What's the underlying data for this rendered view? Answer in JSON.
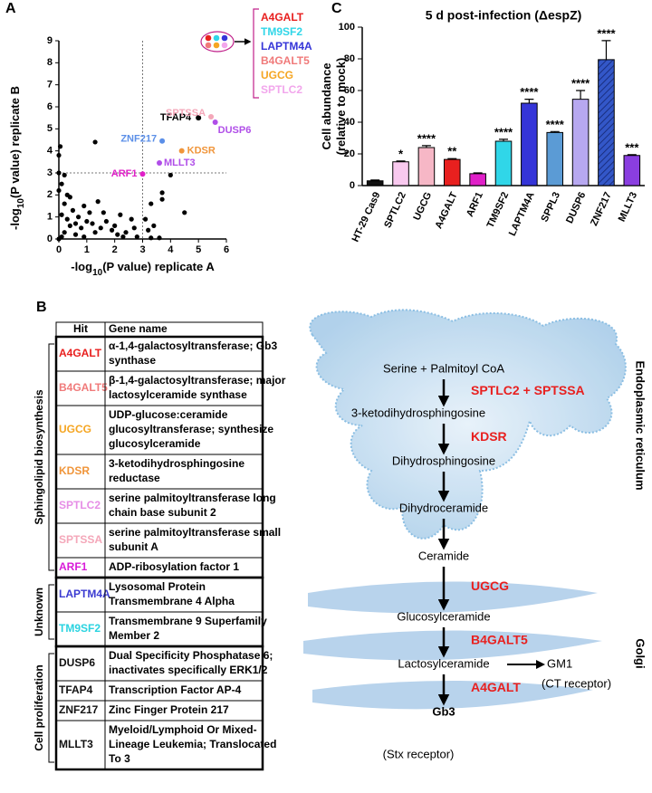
{
  "panel_labels": [
    "A",
    "B",
    "C"
  ],
  "chart_data": [
    {
      "type": "scatter",
      "x_label_parts": [
        "-log",
        "10",
        "(P value) replicate A"
      ],
      "y_label_parts": [
        "-log",
        "10",
        "(P value) replicate B"
      ],
      "xlim": [
        0,
        6
      ],
      "ylim": [
        0,
        9
      ],
      "xticks": [
        0,
        1,
        2,
        3,
        4,
        5,
        6
      ],
      "yticks": [
        0,
        1,
        2,
        3,
        4,
        5,
        6,
        7,
        8,
        9
      ],
      "thresholds": {
        "x": 3,
        "y": 3
      },
      "series": [
        {
          "color": "#000000",
          "x": [
            0.05,
            1.3,
            0,
            0,
            0.1,
            0.3,
            0.2,
            0.5,
            0.1,
            0.7,
            1,
            1.2,
            0.4,
            0.8,
            1.5,
            1.9,
            2.1,
            2.4,
            2.6,
            2.3,
            1.3,
            0.2,
            0.6,
            0.1,
            0,
            0.9,
            1.7,
            1.6,
            2.2,
            1.4,
            0.9,
            2.8,
            3.2,
            3.6,
            3.3,
            3.1,
            3.3,
            3.7,
            3.7,
            4,
            4.5,
            3.4,
            0.3,
            0.6,
            1.1,
            2.7,
            2,
            0.4,
            0.2,
            0
          ],
          "values": [
            4.2,
            4.4,
            3.8,
            3,
            2.5,
            2,
            1.6,
            1.3,
            1.1,
            1,
            0.8,
            0.7,
            0.6,
            0.5,
            0.5,
            0.4,
            0.2,
            0.3,
            0.9,
            0.1,
            0.3,
            0.3,
            0.2,
            0.1,
            0,
            0.1,
            0.8,
            1.2,
            1.1,
            1.7,
            1.5,
            0.1,
            0.4,
            0.05,
            0.05,
            0.9,
            1.6,
            2.1,
            1.8,
            2.9,
            1.2,
            0.6,
            0.9,
            0.7,
            1.2,
            0.5,
            0.6,
            1.9,
            2.9,
            2.2
          ]
        }
      ],
      "labeled_points": [
        {
          "label": "ZNF217",
          "x": 3.7,
          "y": 4.45,
          "color": "#5b8fe8"
        },
        {
          "label": "KDSR",
          "x": 4.4,
          "y": 4.0,
          "color": "#f0953a"
        },
        {
          "label": "MLLT3",
          "x": 3.6,
          "y": 3.45,
          "color": "#b04ee8"
        },
        {
          "label": "ARF1",
          "x": 3.0,
          "y": 2.95,
          "color": "#e020c8"
        },
        {
          "label": "TFAP4",
          "x": 5.0,
          "y": 5.5,
          "color": "#000000"
        },
        {
          "label": "SPTSSA",
          "x": 5.45,
          "y": 5.55,
          "color": "#f4a7b9"
        },
        {
          "label": "DUSP6",
          "x": 5.6,
          "y": 5.3,
          "color": "#b04ee8"
        }
      ],
      "callout": [
        {
          "label": "A4GALT",
          "color": "#e8201f"
        },
        {
          "label": "TM9SF2",
          "color": "#30d6e8"
        },
        {
          "label": "LAPTM4A",
          "color": "#3535d8"
        },
        {
          "label": "B4GALT5",
          "color": "#f07a7a"
        },
        {
          "label": "UGCG",
          "color": "#f5a623"
        },
        {
          "label": "SPTLC2",
          "color": "#f2a6ec"
        }
      ]
    },
    {
      "type": "bar",
      "title": "5 d post-infection (ΔespZ)",
      "y_label_lines": [
        "Cell abundance",
        "(relative to mock)"
      ],
      "categories": [
        "HT-29 Cas9",
        "SPTLC2",
        "UGCG",
        "A4GALT",
        "ARF1",
        "TM9SF2",
        "LAPTM4A",
        "SPPL3",
        "DUSP6",
        "ZNF217",
        "MLLT3"
      ],
      "values": [
        3,
        15,
        24,
        16.5,
        7.5,
        28,
        52,
        33.5,
        54.5,
        79.5,
        19
      ],
      "errors": [
        0.5,
        0.5,
        1.2,
        0.5,
        0.5,
        1.2,
        2.5,
        0.6,
        5.5,
        12,
        0.5
      ],
      "colors": [
        "#111111",
        "#f9c9ef",
        "#f6b7c6",
        "#e8201f",
        "#e020c8",
        "#30d6e8",
        "#3535d8",
        "#5b9bd5",
        "#b7a8f0",
        "#3357c8",
        "#8a3ee0"
      ],
      "hatched": "ZNF217",
      "sig_labels": [
        null,
        "*",
        "****",
        "**",
        null,
        "****",
        "****",
        "****",
        "****",
        "****",
        "***"
      ],
      "ylim": [
        0,
        100
      ],
      "yticks": [
        0,
        20,
        40,
        60,
        80,
        100
      ]
    }
  ],
  "table": {
    "columns": [
      "Hit",
      "Gene name"
    ],
    "groups": [
      {
        "label": "Sphingolipid biosynthesis",
        "rows": [
          {
            "hit": "A4GALT",
            "color": "#e8201f",
            "name_lines": [
              "α-1,4-galactosyltransferase; Gb3",
              "synthase"
            ]
          },
          {
            "hit": "B4GALT5",
            "color": "#f07a7a",
            "name_lines": [
              "β-1,4-galactosyltransferase; major",
              "lactosylceramide synthase"
            ]
          },
          {
            "hit": "UGCG",
            "color": "#f5a623",
            "name_lines": [
              "UDP-glucose:ceramide",
              "glucosyltransferase; synthesize",
              "glucosylceramide"
            ]
          },
          {
            "hit": "KDSR",
            "color": "#f0953a",
            "name_lines": [
              "3-ketodihydrosphingosine",
              "reductase"
            ]
          },
          {
            "hit": "SPTLC2",
            "color": "#e68ee6",
            "name_lines": [
              "serine palmitoyltransferase long",
              "chain base subunit 2"
            ]
          },
          {
            "hit": "SPTSSA",
            "color": "#f4a7b9",
            "name_lines": [
              "serine palmitoyltransferase small",
              "subunit A"
            ]
          },
          {
            "hit": "ARF1",
            "color": "#d81bd8",
            "name_lines": [
              "ADP-ribosylation factor 1"
            ]
          }
        ]
      },
      {
        "label": "Unknown",
        "rows": [
          {
            "hit": "LAPTM4A",
            "color": "#3b3bd1",
            "name_lines": [
              "Lysosomal Protein",
              "Transmembrane 4 Alpha"
            ]
          },
          {
            "hit": "TM9SF2",
            "color": "#2ad3e0",
            "name_lines": [
              "Transmembrane 9 Superfamily",
              "Member 2"
            ]
          }
        ]
      },
      {
        "label": "Cell proliferation",
        "rows": [
          {
            "hit": "DUSP6",
            "color": "#111111",
            "name_lines": [
              "Dual Specificity Phosphatase 6;",
              "inactivates specifically ERK1/2"
            ]
          },
          {
            "hit": "TFAP4",
            "color": "#111111",
            "name_lines": [
              "Transcription Factor AP-4"
            ]
          },
          {
            "hit": "ZNF217",
            "color": "#111111",
            "name_lines": [
              "Zinc Finger Protein 217"
            ]
          },
          {
            "hit": "MLLT3",
            "color": "#111111",
            "name_lines": [
              "Myeloid/Lymphoid Or Mixed-",
              "Lineage Leukemia; Translocated",
              "To 3"
            ]
          }
        ]
      }
    ]
  },
  "pathway": {
    "steps": [
      "Serine + Palmitoyl CoA",
      "3-ketodihydrosphingosine",
      "Dihydrosphingosine",
      "Dihydroceramide",
      "Ceramide",
      "Glucosylceramide",
      "Lactosylceramide",
      "Gb3"
    ],
    "enzymes": [
      "SPTLC2 + SPTSSA",
      "KDSR",
      null,
      null,
      "UGCG",
      "B4GALT5",
      "A4GALT"
    ],
    "branch": "GM1",
    "branch_note": "(CT receptor)",
    "product_note": "(Stx receptor)",
    "compartments": [
      "Endoplasmic reticulum",
      "Golgi"
    ]
  }
}
